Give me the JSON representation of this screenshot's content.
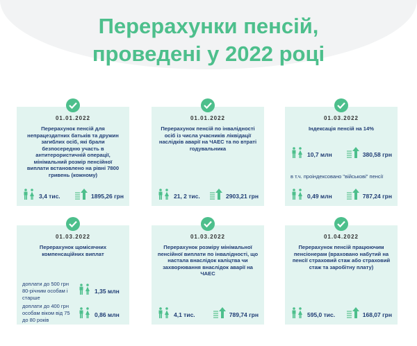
{
  "title_line1": "Перерахунки пенсій,",
  "title_line2": "проведені у 2022 році",
  "colors": {
    "accent": "#4dbf8c",
    "card": "#e2f4f0",
    "text": "#1f3c74"
  },
  "cards": [
    {
      "date": "01.01.2022",
      "desc": "Перерахунок пенсій для непрацездатних батьків та дружин загиблих осіб, які брали безпосередню участь в антитерористичній операції, мінімальний розмір пенсійної виплати встановлено на рівні 7800 гривень (кожному)",
      "people": "3,4 тис.",
      "amount": "1895,26 грн"
    },
    {
      "date": "01.01.2022",
      "desc": "Перерахунок пенсій по інвалідності осіб із числа учасників ліквідації наслідків аварії на ЧАЕС та по втраті годувальника",
      "people": "21, 2 тис.",
      "amount": "2903,21 грн"
    },
    {
      "date": "01.03.2022",
      "desc": "Індексація пенсій на 14%",
      "people": "10,7 млн",
      "amount": "380,58 грн",
      "note": "в т.ч. проіндексовано \"військові\" пенсії",
      "people2": "0,49 млн",
      "amount2": "787,24 грн"
    },
    {
      "date": "01.03.2022",
      "desc": "Перерахунок щомісячних компенсаційних виплат",
      "sub1": "доплати до 500 грн 80-річним особам і старше",
      "people": "1,35 млн",
      "sub2": "доплати до 400 грн особам віком від 75 до 80 років",
      "people2": "0,86 млн"
    },
    {
      "date": "01.03.2022",
      "desc": "Перерахунок розміру мінімальної пенсійної виплати по інвалідності, що настала внаслідок каліцтва чи захворювання внаслідок аварії на ЧАЕС",
      "people": "4,1 тис.",
      "amount": "789,74 грн"
    },
    {
      "date": "01.04.2022",
      "desc": "Перерахунок пенсій працюючим пенсіонерам (враховано набутий на пенсії страховий стаж або страховий стаж та заробітну плату)",
      "people": "595,0 тис.",
      "amount": "168,07 грн"
    }
  ],
  "icons": [
    "check-icon",
    "people-icon",
    "coins-arrow-up-icon"
  ]
}
